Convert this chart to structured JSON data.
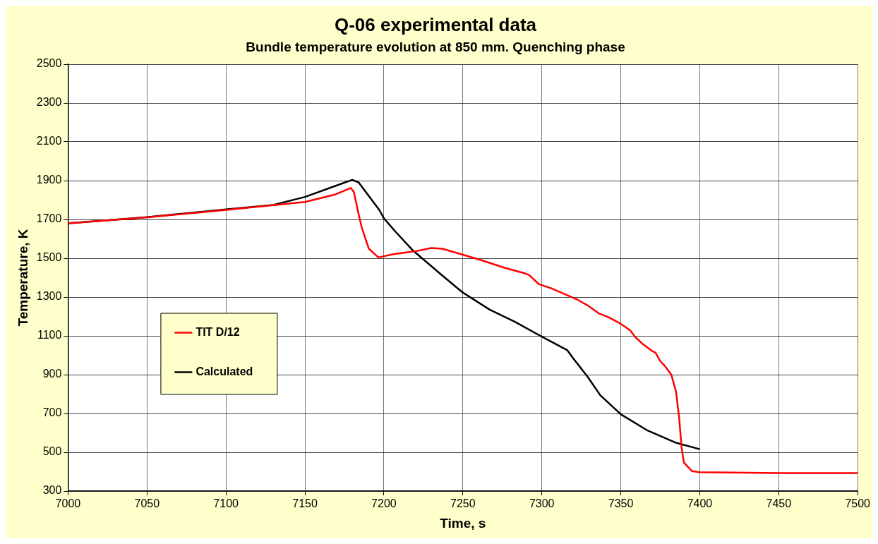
{
  "chart_data": {
    "type": "line",
    "title": "Q-06 experimental data",
    "subtitle": "Bundle temperature evolution at 850 mm. Quenching phase",
    "xlabel": "Time, s",
    "ylabel": "Temperature, K",
    "series": [
      {
        "name": "TIT D/12",
        "color": "#ff0000",
        "x": [
          7000,
          7049,
          7100,
          7150,
          7169,
          7179,
          7181,
          7184,
          7186,
          7190.5,
          7196,
          7197,
          7206,
          7220,
          7230,
          7237,
          7250,
          7261,
          7276,
          7289,
          7292,
          7298,
          7306,
          7322,
          7329,
          7336,
          7342,
          7350,
          7356,
          7359,
          7364,
          7370,
          7372,
          7375,
          7378,
          7382,
          7385,
          7387,
          7388.5,
          7390,
          7395,
          7400,
          7450,
          7500
        ],
        "values": [
          1680,
          1710,
          1749,
          1790,
          1828,
          1862,
          1841,
          1727,
          1658,
          1549,
          1508,
          1505,
          1521,
          1536,
          1553,
          1549,
          1518,
          1492,
          1452,
          1423,
          1413,
          1367,
          1345,
          1289,
          1257,
          1216,
          1197,
          1162,
          1128,
          1095,
          1057,
          1021,
          1013,
          970,
          944,
          900,
          812,
          674,
          523,
          447,
          403,
          397,
          393,
          393
        ]
      },
      {
        "name": "Calculated",
        "color": "#000000",
        "x": [
          7000,
          7050,
          7100,
          7130,
          7150,
          7169,
          7180,
          7184,
          7197,
          7200,
          7207,
          7218,
          7237,
          7250,
          7267,
          7283,
          7300,
          7316,
          7320,
          7329,
          7337,
          7350,
          7367,
          7385,
          7400
        ],
        "values": [
          1680,
          1712,
          1752,
          1775,
          1816,
          1872,
          1904,
          1891,
          1750,
          1706,
          1640,
          1543,
          1411,
          1323,
          1235,
          1172,
          1096,
          1027,
          983,
          889,
          794,
          696,
          612,
          549,
          516
        ]
      }
    ],
    "xlim": [
      7000,
      7500
    ],
    "xticks": [
      7000,
      7050,
      7100,
      7150,
      7200,
      7250,
      7300,
      7350,
      7400,
      7450,
      7500
    ],
    "ylim": [
      300,
      2500
    ],
    "yticks": [
      300,
      500,
      700,
      900,
      1100,
      1300,
      1500,
      1700,
      1900,
      2100,
      2300,
      2500
    ],
    "grid": true,
    "legend": "left",
    "marker": "none",
    "line_style": "solid"
  }
}
